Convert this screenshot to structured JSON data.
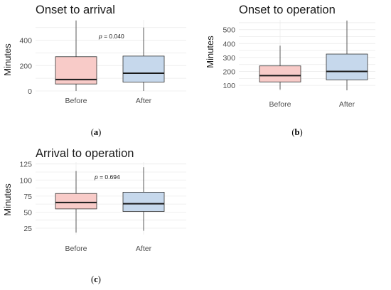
{
  "colors": {
    "before": "#f8cbc8",
    "after": "#c6d8ec"
  },
  "panels": [
    {
      "caption_prefix": "(",
      "caption_letter": "a",
      "caption_suffix": ")"
    },
    {
      "caption_prefix": "(",
      "caption_letter": "b",
      "caption_suffix": ")"
    },
    {
      "caption_prefix": "(",
      "caption_letter": "c",
      "caption_suffix": ")"
    }
  ],
  "chart_data": [
    {
      "type": "boxplot",
      "title": "Onset to arrival",
      "ylabel": "Minutes",
      "xlabel": "",
      "categories": [
        "Before",
        "After"
      ],
      "ylim": [
        0,
        560
      ],
      "yticks": [
        "0",
        "200",
        "400"
      ],
      "ytick_values": [
        0,
        200,
        400
      ],
      "grid": true,
      "annotation": {
        "prefix": "p",
        "text": " = 0.040"
      },
      "boxes": [
        {
          "name": "Before",
          "min": 0,
          "q1": 55,
          "median": 90,
          "q3": 270,
          "max": 555
        },
        {
          "name": "After",
          "min": 0,
          "q1": 70,
          "median": 140,
          "q3": 275,
          "max": 500
        }
      ]
    },
    {
      "type": "boxplot",
      "title": "Onset to operation",
      "ylabel": "Minutes",
      "xlabel": "",
      "categories": [
        "Before",
        "After"
      ],
      "ylim": [
        60,
        570
      ],
      "yticks": [
        "100",
        "200",
        "300",
        "400",
        "500"
      ],
      "ytick_values": [
        100,
        200,
        300,
        400,
        500
      ],
      "grid": true,
      "boxes": [
        {
          "name": "Before",
          "min": 70,
          "q1": 125,
          "median": 170,
          "q3": 240,
          "max": 385
        },
        {
          "name": "After",
          "min": 65,
          "q1": 140,
          "median": 200,
          "q3": 325,
          "max": 565
        }
      ]
    },
    {
      "type": "boxplot",
      "title": "Arrival to operation",
      "ylabel": "Minutes",
      "xlabel": "",
      "categories": [
        "Before",
        "After"
      ],
      "ylim": [
        15,
        128
      ],
      "yticks": [
        "25",
        "50",
        "75",
        "100",
        "125"
      ],
      "ytick_values": [
        25,
        50,
        75,
        100,
        125
      ],
      "grid": true,
      "annotation": {
        "prefix": "p",
        "text": " = 0.694"
      },
      "boxes": [
        {
          "name": "Before",
          "min": 18,
          "q1": 55,
          "median": 65,
          "q3": 79,
          "max": 114
        },
        {
          "name": "After",
          "min": 21,
          "q1": 51,
          "median": 63,
          "q3": 81,
          "max": 120
        }
      ]
    }
  ]
}
